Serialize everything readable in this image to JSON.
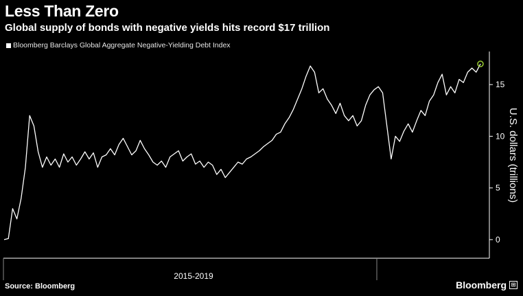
{
  "header": {
    "title": "Less Than Zero",
    "subtitle": "Global supply of bonds with negative yields hits record $17 trillion"
  },
  "footer": {
    "source": "Source: Bloomberg",
    "brand": "Bloomberg"
  },
  "colors": {
    "background": "#000000",
    "line": "#ffffff",
    "highlight": "#9acd32",
    "axis": "#ffffff",
    "grid": "#2a2a2a"
  },
  "chart_data": {
    "type": "line",
    "title": "Less Than Zero",
    "subtitle": "Global supply of bonds with negative yields hits record $17 trillion",
    "ylabel": "U.S. dollars (trillions)",
    "xlabel": "2015-2019",
    "ylim": [
      -1.8,
      18.2
    ],
    "yticks": [
      0,
      5,
      10,
      15
    ],
    "grid": false,
    "legend_position": "top-left",
    "series": [
      {
        "name": "Bloomberg Barclays Global Aggregate Negative-Yielding Debt Index",
        "values": [
          0.0,
          0.1,
          3.0,
          2.0,
          4.0,
          7.0,
          12.0,
          11.0,
          8.5,
          7.0,
          8.0,
          7.2,
          7.8,
          7.0,
          8.3,
          7.5,
          8.0,
          7.2,
          7.8,
          8.5,
          7.8,
          8.4,
          7.0,
          8.0,
          8.2,
          8.8,
          8.2,
          9.2,
          9.8,
          9.0,
          8.2,
          8.6,
          9.6,
          8.8,
          8.2,
          7.5,
          7.2,
          7.6,
          7.0,
          8.0,
          8.3,
          8.6,
          7.6,
          8.0,
          8.3,
          7.3,
          7.6,
          7.0,
          7.5,
          7.2,
          6.3,
          6.8,
          6.0,
          6.5,
          7.0,
          7.5,
          7.3,
          7.8,
          8.0,
          8.3,
          8.6,
          9.0,
          9.3,
          9.6,
          10.2,
          10.4,
          11.2,
          11.8,
          12.6,
          13.6,
          14.6,
          15.8,
          16.8,
          16.2,
          14.2,
          14.6,
          13.6,
          13.0,
          12.2,
          13.2,
          12.0,
          11.5,
          12.0,
          11.0,
          11.5,
          13.0,
          14.0,
          14.5,
          14.8,
          14.2,
          11.0,
          7.8,
          10.0,
          9.5,
          10.5,
          11.2,
          10.4,
          11.5,
          12.5,
          12.0,
          13.4,
          14.0,
          15.2,
          16.0,
          14.0,
          14.8,
          14.2,
          15.5,
          15.2,
          16.2,
          16.6,
          16.2,
          17.0
        ]
      }
    ],
    "highlight_point": {
      "index": 112,
      "value": 17.0
    }
  }
}
